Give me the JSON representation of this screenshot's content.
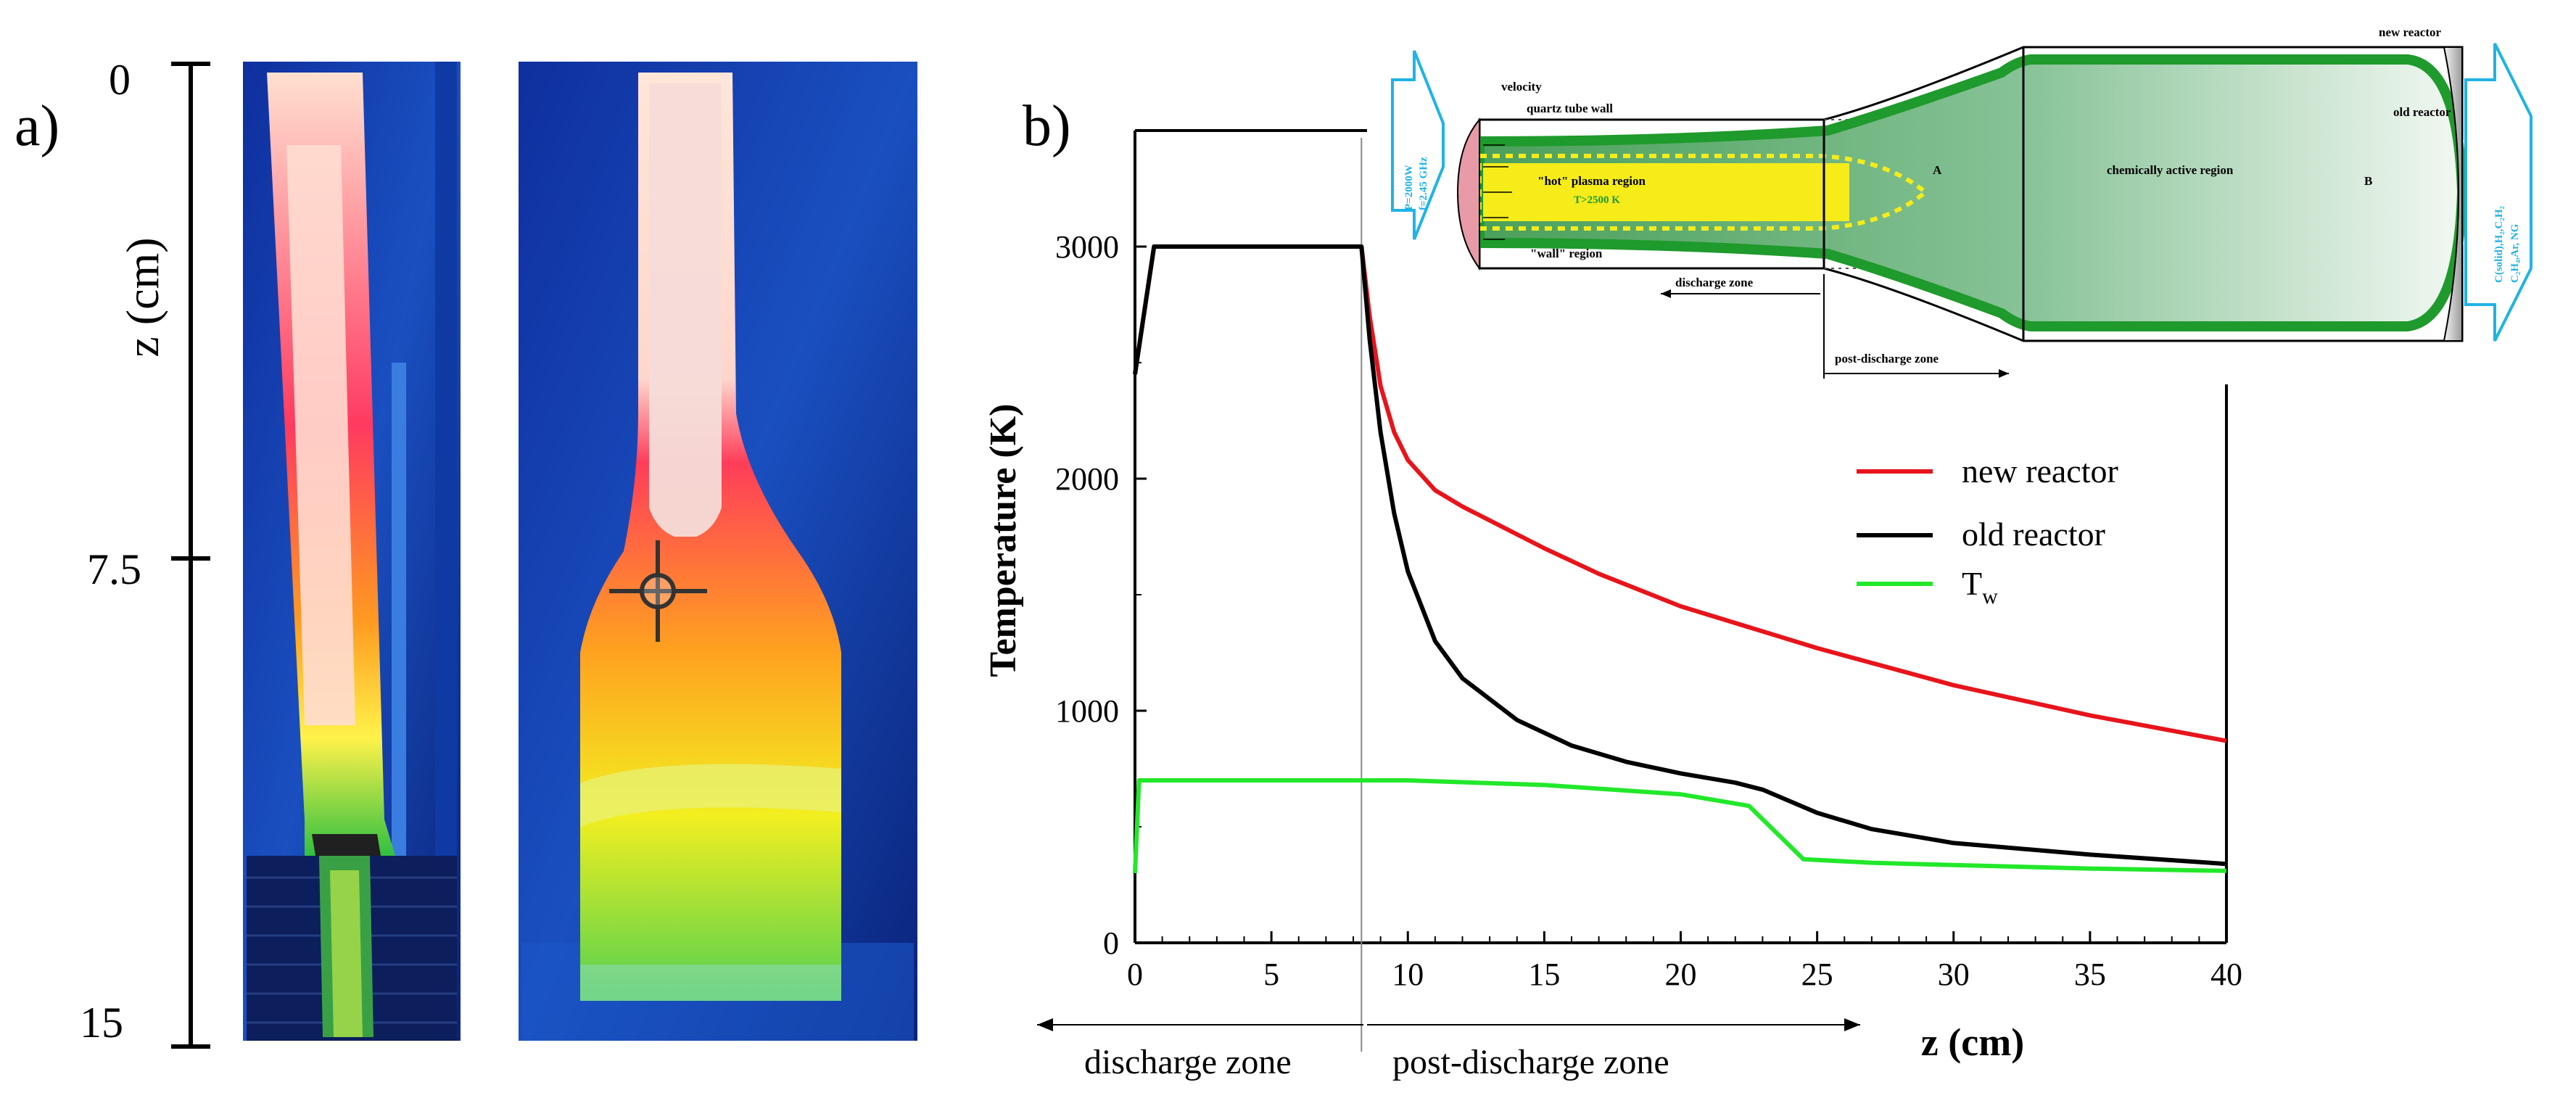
{
  "panel_a": {
    "label": "a)",
    "axis_label": "z (cm)",
    "ticks": [
      "0",
      "7.5",
      "15"
    ],
    "tick_values": [
      0,
      7.5,
      15
    ]
  },
  "panel_b": {
    "label": "b)",
    "zones": {
      "discharge": "discharge zone",
      "post_discharge": "post-discharge zone"
    }
  },
  "chart_data": {
    "type": "line",
    "xlabel": "z (cm)",
    "ylabel": "Temperature (K)",
    "xlim": [
      0,
      40
    ],
    "ylim": [
      0,
      3500
    ],
    "xticks": [
      0,
      5,
      10,
      15,
      20,
      25,
      30,
      35,
      40
    ],
    "yticks": [
      0,
      1000,
      2000,
      3000
    ],
    "xtick_labels": [
      "0",
      "5",
      "10",
      "15",
      "20",
      "25",
      "30",
      "35",
      "40"
    ],
    "ytick_labels": [
      "0",
      "1000",
      "2000",
      "3000"
    ],
    "grid": false,
    "legend_position": "right",
    "vline_x": 8.3,
    "series": [
      {
        "name": "new reactor",
        "color": "#e8141b",
        "x": [
          0,
          0.7,
          8.3,
          8.6,
          9,
          9.5,
          10,
          11,
          12,
          13,
          15,
          17,
          20,
          25,
          30,
          35,
          40
        ],
        "y": [
          2450,
          3000,
          3000,
          2700,
          2400,
          2200,
          2080,
          1950,
          1880,
          1820,
          1700,
          1590,
          1450,
          1270,
          1110,
          980,
          870
        ]
      },
      {
        "name": "old reactor",
        "color": "#000000",
        "x": [
          0,
          0.7,
          8.3,
          8.6,
          9,
          9.5,
          10,
          11,
          12,
          14,
          16,
          18,
          20,
          22,
          23,
          25,
          27,
          30,
          35,
          40
        ],
        "y": [
          2450,
          3000,
          3000,
          2600,
          2200,
          1850,
          1600,
          1300,
          1140,
          960,
          850,
          780,
          730,
          690,
          660,
          560,
          490,
          430,
          380,
          340
        ]
      },
      {
        "name": "T_w",
        "legend_main": "T",
        "legend_sub": "w",
        "color": "#22e82a",
        "x": [
          0,
          0.15,
          10,
          15,
          20,
          22.5,
          24.5,
          27,
          30,
          35,
          40
        ],
        "y": [
          300,
          700,
          700,
          680,
          640,
          590,
          360,
          345,
          335,
          320,
          310
        ]
      }
    ],
    "inset_diagram": {
      "labels": {
        "velocity": "velocity",
        "quartz": "quartz tube wall",
        "hot_plasma": "\"hot\" plasma region",
        "temp": "T>2500 K",
        "wall_region": "\"wall\" region",
        "discharge_zone": "discharge zone",
        "post_discharge_zone": "post-discharge zone",
        "chem_active": "chemically active region",
        "new_reactor": "new reactor",
        "old_reactor": "old reactor",
        "point_a": "A",
        "point_b": "B",
        "power_p": "P=2000W",
        "power_f": "f=2.45 GHz",
        "products_1": "C(solid),H₂,C₂H₂",
        "products_2": "C₂H₄,Ar, NG"
      },
      "colors": {
        "green": "#1f9a2c",
        "yellow": "#f5ec1a",
        "arrow": "#1fb3e6",
        "cathode": "#e89aa6"
      }
    }
  }
}
